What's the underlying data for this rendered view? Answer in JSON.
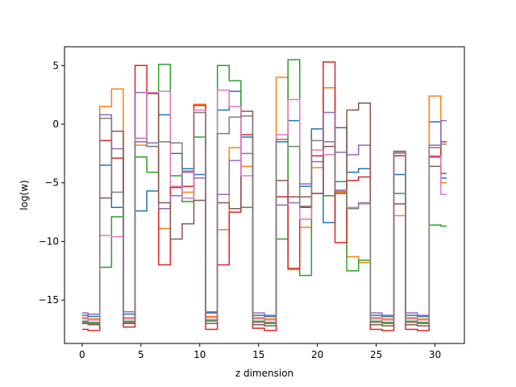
{
  "chart_data": {
    "type": "line",
    "drawstyle": "steps-mid",
    "title": "",
    "xlabel": "z dimension",
    "ylabel": "log(w)",
    "xlim": [
      -1.5,
      32.5
    ],
    "ylim": [
      -18.7,
      6.6
    ],
    "xticks": [
      0,
      5,
      10,
      15,
      20,
      25,
      30
    ],
    "yticks": [
      -15,
      -10,
      -5,
      0,
      5
    ],
    "grid": false,
    "legend": "none",
    "x": [
      0,
      1,
      2,
      3,
      4,
      5,
      6,
      7,
      8,
      9,
      10,
      11,
      12,
      13,
      14,
      15,
      16,
      17,
      18,
      19,
      20,
      21,
      22,
      23,
      24,
      25,
      26,
      27,
      28,
      29,
      30,
      31
    ],
    "series": [
      {
        "color": "#1f77b4",
        "values": [
          -16.3,
          -16.4,
          -3.5,
          -7.1,
          -16.2,
          -7.4,
          -5.7,
          0.8,
          -2.5,
          -3.8,
          -4.3,
          -16.1,
          1.2,
          2.8,
          -1.1,
          -16.3,
          -16.4,
          -1.5,
          0.3,
          -5.3,
          -0.4,
          -8.4,
          -0.3,
          -4.1,
          -3.8,
          -16.3,
          -16.4,
          -4.3,
          -16.3,
          -16.4,
          0.2,
          -4.6
        ]
      },
      {
        "color": "#ff7f0e",
        "values": [
          -16.5,
          -16.6,
          1.5,
          3.0,
          -16.5,
          -1.8,
          -1.9,
          -8.9,
          -5.4,
          -5.8,
          1.7,
          -16.4,
          -9.0,
          -2.0,
          -3.6,
          -16.5,
          -16.6,
          4.0,
          -12.4,
          -8.8,
          -3.7,
          3.1,
          -5.8,
          -11.3,
          -11.8,
          -16.5,
          -16.6,
          -7.8,
          -16.5,
          -16.6,
          2.4,
          -5.0
        ]
      },
      {
        "color": "#2ca02c",
        "values": [
          -16.8,
          -16.9,
          -12.2,
          -7.9,
          -16.8,
          -2.8,
          -4.1,
          5.1,
          -4.4,
          -6.6,
          -1.1,
          -16.7,
          5.0,
          3.7,
          -7.1,
          -16.8,
          -16.9,
          -9.8,
          5.5,
          -12.9,
          -5.9,
          -6.1,
          -4.9,
          -12.5,
          -11.6,
          -16.8,
          -16.9,
          -5.9,
          -16.8,
          -16.9,
          -8.6,
          -8.7
        ]
      },
      {
        "color": "#d62728",
        "values": [
          -17.5,
          -17.6,
          -1.4,
          -2.9,
          -17.3,
          5.0,
          2.7,
          -12.0,
          -5.4,
          -5.3,
          1.6,
          -17.5,
          -12.0,
          -7.5,
          -0.9,
          -17.4,
          -17.6,
          -6.2,
          -12.3,
          -7.1,
          -2.7,
          5.3,
          -10.1,
          -4.8,
          -4.5,
          -17.5,
          -17.6,
          -2.7,
          -17.5,
          -17.6,
          -2.8,
          -1.5
        ]
      },
      {
        "color": "#9467bd",
        "values": [
          -16.1,
          -16.2,
          0.8,
          -2.1,
          -16.0,
          2.7,
          -1.6,
          -7.2,
          -6.1,
          -4.1,
          -4.6,
          -16.0,
          -6.0,
          -3.1,
          -2.5,
          -16.1,
          -16.3,
          -6.9,
          -6.7,
          -5.1,
          -3.2,
          1.0,
          -2.4,
          -2.6,
          -1.8,
          -16.1,
          -16.3,
          -2.3,
          -16.1,
          -16.3,
          -1.8,
          0.3
        ]
      },
      {
        "color": "#8c564b",
        "values": [
          -17.0,
          -17.1,
          -6.3,
          -0.6,
          -17.0,
          -1.2,
          2.6,
          -6.7,
          -9.8,
          -8.5,
          -6.5,
          -17.0,
          -6.7,
          -7.2,
          1.1,
          -17.1,
          -17.2,
          -4.8,
          -6.2,
          -6.2,
          -5.9,
          -1.9,
          -5.9,
          1.2,
          1.8,
          -17.1,
          -17.2,
          -6.8,
          -17.1,
          -17.2,
          -3.6,
          -4.2
        ]
      },
      {
        "color": "#e377c2",
        "values": [
          -16.6,
          -16.7,
          -9.5,
          -9.6,
          -16.6,
          -1.2,
          2.7,
          2.8,
          -5.3,
          -6.3,
          1.2,
          -16.5,
          2.9,
          1.5,
          -4.4,
          -16.6,
          -16.7,
          -0.9,
          2.1,
          -8.1,
          -2.2,
          -2.6,
          -5.6,
          -7.1,
          -6.8,
          -16.6,
          -16.7,
          -2.5,
          -16.6,
          -16.7,
          -2.7,
          -6.0
        ]
      },
      {
        "color": "#7f7f7f",
        "values": [
          -16.9,
          -17.0,
          0.5,
          -5.8,
          -16.9,
          -1.5,
          -1.9,
          -1.5,
          -1.6,
          -4.0,
          1.0,
          -16.8,
          -0.8,
          0.6,
          0.7,
          -16.9,
          -17.0,
          -1.3,
          -1.9,
          -7.0,
          -1.4,
          -1.5,
          -5.7,
          -7.2,
          -6.7,
          -16.9,
          -17.0,
          -2.4,
          -16.9,
          -17.0,
          -2.0,
          -1.7
        ]
      }
    ]
  }
}
